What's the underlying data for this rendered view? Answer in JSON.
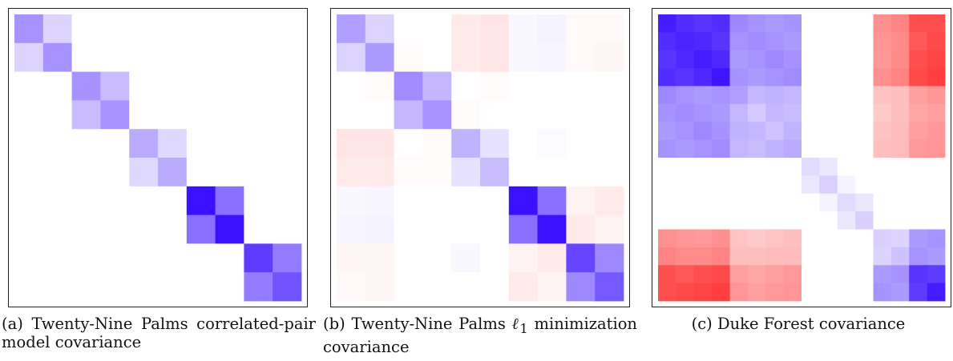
{
  "figure": {
    "panels": [
      {
        "label": "(a)",
        "caption": "Twenty-Nine Palms correlated-pair model covariance"
      },
      {
        "label": "(b)",
        "caption_before": "Twenty-Nine Palms ",
        "symbol": "ℓ",
        "subscript": "1",
        "caption_after": " minimization covariance"
      },
      {
        "label": "(c)",
        "caption": "Duke Forest covariance"
      }
    ]
  },
  "colors": {
    "positive": "#3a10ff",
    "negative": "#ff2a2a",
    "zero": "#ffffff",
    "frame": "#222222"
  },
  "chart_data": [
    {
      "type": "heatmap",
      "title": "",
      "rows": 10,
      "cols": 10,
      "vmin": -1,
      "vmax": 1,
      "values": [
        [
          0.45,
          0.18,
          0,
          0,
          0,
          0,
          0,
          0,
          0,
          0
        ],
        [
          0.18,
          0.45,
          0,
          0,
          0,
          0,
          0,
          0,
          0,
          0
        ],
        [
          0,
          0,
          0.45,
          0.28,
          0,
          0,
          0,
          0,
          0,
          0
        ],
        [
          0,
          0,
          0.28,
          0.45,
          0,
          0,
          0,
          0,
          0,
          0
        ],
        [
          0,
          0,
          0,
          0,
          0.35,
          0.16,
          0,
          0,
          0,
          0
        ],
        [
          0,
          0,
          0,
          0,
          0.16,
          0.35,
          0,
          0,
          0,
          0
        ],
        [
          0,
          0,
          0,
          0,
          0,
          0,
          1.0,
          0.6,
          0,
          0
        ],
        [
          0,
          0,
          0,
          0,
          0,
          0,
          0.6,
          1.0,
          0,
          0
        ],
        [
          0,
          0,
          0,
          0,
          0,
          0,
          0,
          0,
          0.82,
          0.55
        ],
        [
          0,
          0,
          0,
          0,
          0,
          0,
          0,
          0,
          0.55,
          0.72
        ]
      ]
    },
    {
      "type": "heatmap",
      "title": "",
      "rows": 10,
      "cols": 10,
      "vmin": -1,
      "vmax": 1,
      "values": [
        [
          0.4,
          0.18,
          0,
          0,
          -0.1,
          -0.12,
          0.03,
          0.05,
          -0.03,
          -0.03
        ],
        [
          0.18,
          0.42,
          -0.02,
          0,
          -0.1,
          -0.12,
          0.03,
          0.04,
          -0.03,
          -0.04
        ],
        [
          0,
          -0.02,
          0.48,
          0.3,
          0,
          -0.02,
          0,
          0,
          0,
          0
        ],
        [
          0,
          0,
          0.3,
          0.45,
          -0.02,
          0,
          0,
          0,
          0,
          0
        ],
        [
          -0.12,
          -0.12,
          0,
          -0.02,
          0.32,
          0.12,
          0,
          0.02,
          0,
          0
        ],
        [
          -0.1,
          -0.1,
          -0.02,
          -0.02,
          0.12,
          0.28,
          0,
          0,
          0,
          0
        ],
        [
          0.03,
          0.04,
          0,
          0,
          0,
          0,
          1.0,
          0.6,
          -0.06,
          -0.1
        ],
        [
          0.04,
          0.05,
          0,
          0,
          0,
          0,
          0.6,
          1.0,
          -0.1,
          -0.06
        ],
        [
          -0.04,
          -0.04,
          0,
          0,
          0.03,
          0,
          -0.06,
          -0.1,
          0.78,
          0.5
        ],
        [
          -0.03,
          -0.04,
          0,
          0,
          0,
          0,
          -0.1,
          -0.06,
          0.5,
          0.7
        ]
      ]
    },
    {
      "type": "heatmap",
      "title": "",
      "rows": 16,
      "cols": 16,
      "vmin": -1,
      "vmax": 1,
      "values": [
        [
          0.95,
          0.88,
          0.85,
          0.88,
          0.5,
          0.45,
          0.42,
          0.45,
          0,
          0,
          0,
          0,
          -0.52,
          -0.58,
          -0.82,
          -0.82
        ],
        [
          0.88,
          0.92,
          0.9,
          0.85,
          0.45,
          0.48,
          0.45,
          0.42,
          0,
          0,
          0,
          0,
          -0.5,
          -0.55,
          -0.78,
          -0.85
        ],
        [
          0.85,
          0.9,
          0.95,
          0.9,
          0.42,
          0.45,
          0.5,
          0.45,
          0,
          0,
          0,
          0,
          -0.48,
          -0.55,
          -0.82,
          -0.88
        ],
        [
          0.88,
          0.85,
          0.9,
          0.98,
          0.45,
          0.42,
          0.45,
          0.48,
          0,
          0,
          0,
          0,
          -0.52,
          -0.58,
          -0.85,
          -0.9
        ],
        [
          0.5,
          0.45,
          0.42,
          0.45,
          0.4,
          0.3,
          0.32,
          0.3,
          0,
          0,
          0,
          0,
          -0.28,
          -0.3,
          -0.45,
          -0.5
        ],
        [
          0.45,
          0.48,
          0.45,
          0.42,
          0.3,
          0.22,
          0.3,
          0.28,
          0,
          0,
          0,
          0,
          -0.25,
          -0.3,
          -0.42,
          -0.45
        ],
        [
          0.42,
          0.45,
          0.5,
          0.45,
          0.32,
          0.3,
          0.25,
          0.32,
          0,
          0,
          0,
          0,
          -0.28,
          -0.32,
          -0.45,
          -0.48
        ],
        [
          0.45,
          0.42,
          0.45,
          0.48,
          0.3,
          0.28,
          0.32,
          0.35,
          0,
          0,
          0,
          0,
          -0.3,
          -0.32,
          -0.48,
          -0.5
        ],
        [
          0,
          0,
          0,
          0,
          0,
          0,
          0,
          0,
          0.15,
          0.1,
          0,
          0,
          0,
          0,
          0,
          0
        ],
        [
          0,
          0,
          0,
          0,
          0,
          0,
          0,
          0,
          0.1,
          0.2,
          0.05,
          0,
          0,
          0,
          0,
          0
        ],
        [
          0,
          0,
          0,
          0,
          0,
          0,
          0,
          0,
          0,
          0.05,
          0.15,
          0.1,
          0,
          0,
          0,
          0
        ],
        [
          0,
          0,
          0,
          0,
          0,
          0,
          0,
          0,
          0,
          0,
          0.1,
          0.2,
          0,
          0,
          0,
          0
        ],
        [
          -0.52,
          -0.5,
          -0.48,
          -0.52,
          -0.28,
          -0.25,
          -0.28,
          -0.3,
          0,
          0,
          0,
          0,
          0.2,
          0.18,
          0.42,
          0.45
        ],
        [
          -0.58,
          -0.55,
          -0.55,
          -0.58,
          -0.3,
          -0.3,
          -0.32,
          -0.32,
          0,
          0,
          0,
          0,
          0.18,
          0.25,
          0.45,
          0.42
        ],
        [
          -0.82,
          -0.78,
          -0.82,
          -0.85,
          -0.45,
          -0.42,
          -0.45,
          -0.48,
          0,
          0,
          0,
          0,
          0.42,
          0.45,
          0.85,
          0.82
        ],
        [
          -0.82,
          -0.85,
          -0.88,
          -0.9,
          -0.5,
          -0.45,
          -0.48,
          -0.5,
          0,
          0,
          0,
          0,
          0.45,
          0.42,
          0.82,
          0.95
        ]
      ]
    }
  ]
}
